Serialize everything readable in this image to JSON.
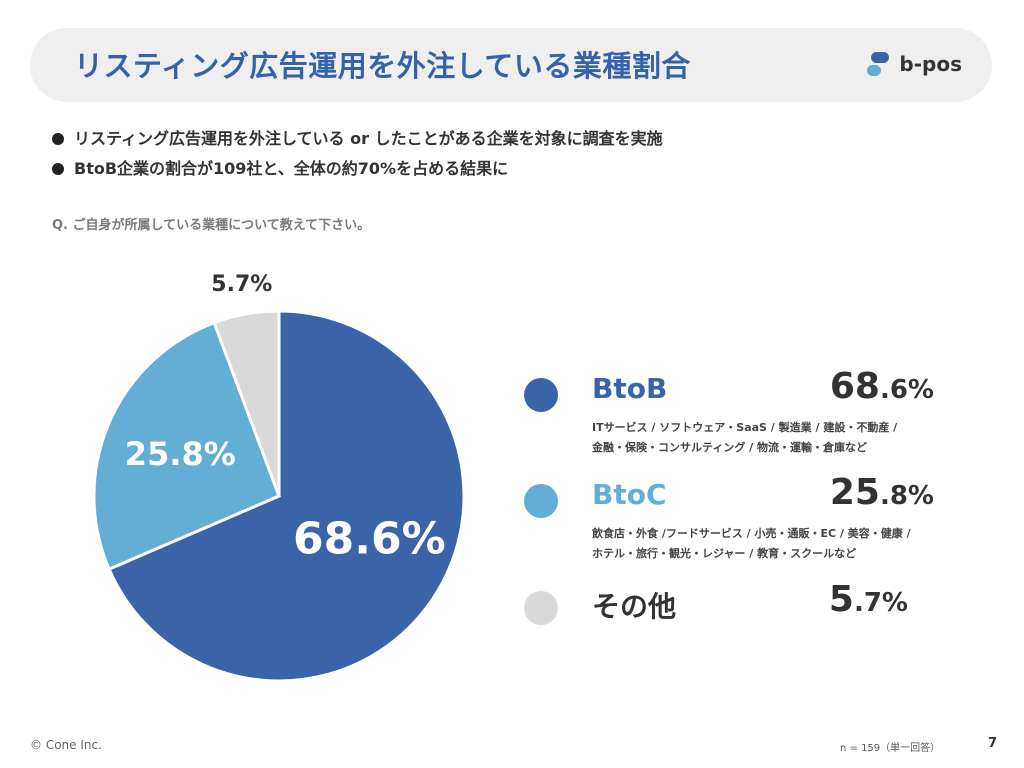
{
  "header": {
    "title": "リスティング広告運用を外注している業種割合",
    "brand": "b-pos"
  },
  "bullets": [
    "リスティング広告運用を外注している or したことがある企業を対象に調査を実施",
    "BtoB企業の割合が109社と、全体の約70%を占める結果に"
  ],
  "question": "Q. ご自身が所属している業種について教えて下さい。",
  "chart_data": {
    "type": "pie",
    "categories": [
      "BtoB",
      "BtoC",
      "その他"
    ],
    "values": [
      68.6,
      25.8,
      5.7
    ],
    "value_labels": [
      "68.6%",
      "25.8%",
      "5.7%"
    ],
    "colors": [
      "#3a63a8",
      "#63aed4",
      "#d9d9d9"
    ],
    "start": "12 o'clock",
    "direction": "clockwise"
  },
  "legend": [
    {
      "name": "BtoB",
      "value_main": "68",
      "value_sub": ".6%",
      "color": "#3a63a8",
      "desc_lines": [
        "ITサービス / ソフトウェア・SaaS / 製造業 / 建設・不動産 /",
        "金融・保険・コンサルティング / 物流・運輸・倉庫など"
      ]
    },
    {
      "name": "BtoC",
      "value_main": "25",
      "value_sub": ".8%",
      "color": "#63aed4",
      "desc_lines": [
        "飲食店・外食 /フードサービス / 小売・通販・EC / 美容・健康 /",
        "ホテル・旅行・観光・レジャー / 教育・スクールなど"
      ]
    },
    {
      "name": "その他",
      "value_main": "5",
      "value_sub": ".7%",
      "color": "#d9d9d9",
      "desc_lines": []
    }
  ],
  "footer": {
    "copyright": "© Cone Inc.",
    "sample": "n = 159（単一回答）",
    "page": "7"
  }
}
